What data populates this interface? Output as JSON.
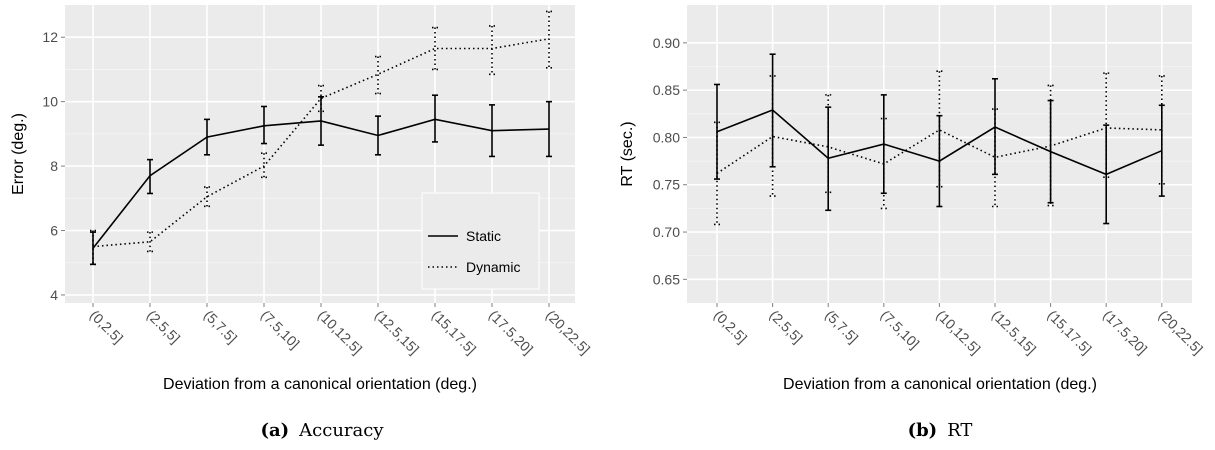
{
  "chart_data": [
    {
      "type": "line",
      "categories": [
        "(0,2.5]",
        "(2.5,5]",
        "(5,7.5]",
        "(7.5,10]",
        "(10,12.5]",
        "(12.5,15]",
        "(15,17.5]",
        "(17.5,20]",
        "(20,22.5]"
      ],
      "xlabel": "Deviation from a canonical orientation (deg.)",
      "ylabel": "Error (deg.)",
      "ylim": [
        3.75,
        13.0
      ],
      "yticks": [
        4,
        6,
        8,
        10,
        12
      ],
      "ytick_labels": [
        "4",
        "6",
        "8",
        "10",
        "12"
      ],
      "grid": true,
      "legend_position": "bottom-right",
      "caption_label": "(a)",
      "caption_text": "Accuracy",
      "series": [
        {
          "name": "Static",
          "style": "solid",
          "values": [
            5.45,
            7.7,
            8.9,
            9.25,
            9.4,
            8.95,
            9.45,
            9.1,
            9.15
          ],
          "err_low": [
            4.95,
            7.15,
            8.35,
            8.7,
            8.65,
            8.35,
            8.75,
            8.3,
            8.3
          ],
          "err_high": [
            5.95,
            8.2,
            9.45,
            9.85,
            10.15,
            9.55,
            10.2,
            9.9,
            10.0
          ]
        },
        {
          "name": "Dynamic",
          "style": "dotted",
          "values": [
            5.5,
            5.65,
            7.05,
            8.0,
            10.1,
            10.85,
            11.65,
            11.65,
            11.95
          ],
          "err_low": [
            4.95,
            5.35,
            6.75,
            7.65,
            9.7,
            10.25,
            11.0,
            10.85,
            11.05
          ],
          "err_high": [
            6.0,
            5.95,
            7.35,
            8.4,
            10.5,
            11.4,
            12.3,
            12.35,
            12.8
          ]
        }
      ]
    },
    {
      "type": "line",
      "categories": [
        "(0,2.5]",
        "(2.5,5]",
        "(5,7.5]",
        "(7.5,10]",
        "(10,12.5]",
        "(12.5,15]",
        "(15,17.5]",
        "(17.5,20]",
        "(20,22.5]"
      ],
      "xlabel": "Deviation from a canonical orientation (deg.)",
      "ylabel": "RT (sec.)",
      "ylim": [
        0.625,
        0.94
      ],
      "yticks": [
        0.65,
        0.7,
        0.75,
        0.8,
        0.85,
        0.9
      ],
      "ytick_labels": [
        "0.65",
        "0.70",
        "0.75",
        "0.80",
        "0.85",
        "0.90"
      ],
      "grid": true,
      "caption_label": "(b)",
      "caption_text": "RT",
      "series": [
        {
          "name": "Static",
          "style": "solid",
          "values": [
            0.806,
            0.829,
            0.778,
            0.793,
            0.775,
            0.811,
            0.785,
            0.761,
            0.786
          ],
          "err_low": [
            0.756,
            0.769,
            0.723,
            0.741,
            0.727,
            0.761,
            0.731,
            0.709,
            0.738
          ],
          "err_high": [
            0.856,
            0.888,
            0.832,
            0.845,
            0.823,
            0.862,
            0.839,
            0.813,
            0.834
          ]
        },
        {
          "name": "Dynamic",
          "style": "dotted",
          "values": [
            0.762,
            0.801,
            0.79,
            0.772,
            0.808,
            0.779,
            0.791,
            0.81,
            0.808
          ],
          "err_low": [
            0.708,
            0.738,
            0.742,
            0.725,
            0.748,
            0.727,
            0.728,
            0.758,
            0.751
          ],
          "err_high": [
            0.816,
            0.865,
            0.845,
            0.82,
            0.87,
            0.83,
            0.855,
            0.868,
            0.865
          ]
        }
      ]
    }
  ]
}
